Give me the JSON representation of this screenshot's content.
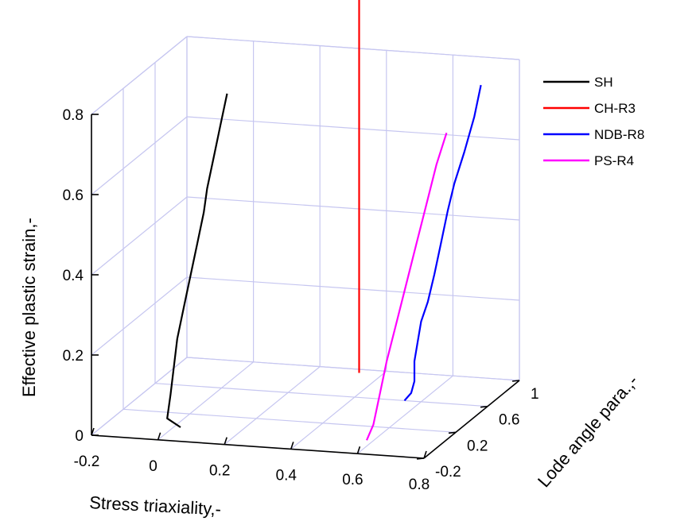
{
  "chart_data": {
    "type": "line",
    "projection": "3d",
    "grid": true,
    "legend_position": "top-right",
    "xlabel": "Stress triaxiality,-",
    "ylabel": "Lode angle para.,-",
    "zlabel": "Effective plastic strain,-",
    "xlim": [
      -0.2,
      0.8
    ],
    "ylim": [
      -0.2,
      1
    ],
    "zlim": [
      0,
      0.8
    ],
    "x_ticks": [
      "-0.2",
      "0",
      "0.2",
      "0.4",
      "0.6",
      "0.8"
    ],
    "y_ticks": [
      "-0.2",
      "0.2",
      "0.6",
      "1"
    ],
    "z_ticks": [
      "0",
      "0.2",
      "0.4",
      "0.6",
      "0.8"
    ],
    "series": [
      {
        "name": "SH",
        "color": "#000000",
        "x": [
          0.02,
          -0.02,
          -0.01,
          0.0,
          0.01,
          0.03,
          0.05,
          0.07,
          0.09,
          0.1,
          0.12,
          0.14,
          0.16
        ],
        "y": [
          0.0,
          0.0,
          0.0,
          0.0,
          0.0,
          0.0,
          0.0,
          0.0,
          0.0,
          0.0,
          0.0,
          0.0,
          0.0
        ],
        "z": [
          0.0,
          0.02,
          0.08,
          0.15,
          0.22,
          0.3,
          0.38,
          0.46,
          0.54,
          0.6,
          0.68,
          0.76,
          0.84
        ]
      },
      {
        "name": "CH-R3",
        "color": "#ff0000",
        "x": [
          0.33,
          0.33,
          0.33,
          0.33,
          0.33,
          0.33,
          0.33,
          0.33,
          0.33,
          0.33
        ],
        "y": [
          0.95,
          0.95,
          0.95,
          0.95,
          0.95,
          0.95,
          0.95,
          0.95,
          0.95,
          0.95
        ],
        "z": [
          0.0,
          0.03,
          0.06,
          0.1,
          0.2,
          0.35,
          0.5,
          0.65,
          0.8,
          0.95
        ]
      },
      {
        "name": "NDB-R8",
        "color": "#0000ff",
        "x": [
          0.55,
          0.57,
          0.58,
          0.58,
          0.59,
          0.6,
          0.62,
          0.64,
          0.66,
          0.68,
          0.7,
          0.73,
          0.76,
          0.78
        ],
        "y": [
          0.6,
          0.6,
          0.6,
          0.6,
          0.6,
          0.6,
          0.6,
          0.6,
          0.6,
          0.6,
          0.6,
          0.6,
          0.6,
          0.6
        ],
        "z": [
          0.0,
          0.02,
          0.05,
          0.1,
          0.15,
          0.2,
          0.25,
          0.32,
          0.4,
          0.48,
          0.55,
          0.63,
          0.72,
          0.8
        ]
      },
      {
        "name": "PS-R4",
        "color": "#ff00ff",
        "x": [
          0.58,
          0.6,
          0.62,
          0.64,
          0.67,
          0.7,
          0.73,
          0.76,
          0.79,
          0.82
        ],
        "y": [
          0.0,
          0.0,
          0.0,
          0.0,
          0.0,
          0.0,
          0.0,
          0.0,
          0.0,
          0.0
        ],
        "z": [
          0.0,
          0.04,
          0.12,
          0.2,
          0.3,
          0.4,
          0.5,
          0.6,
          0.7,
          0.78
        ]
      }
    ]
  }
}
